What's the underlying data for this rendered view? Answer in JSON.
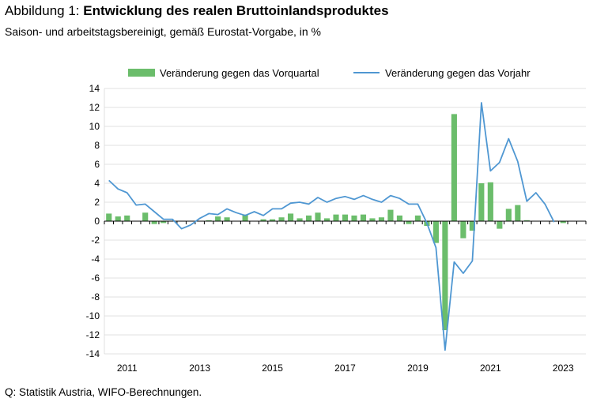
{
  "header": {
    "title_prefix": "Abbildung 1: ",
    "title_main": "Entwicklung des realen Bruttoinlandsproduktes",
    "subtitle": "Saison- und arbeitstagsbereinigt, gemäß Eurostat-Vorgabe, in %"
  },
  "footer": {
    "source": "Q: Statistik Austria, WIFO-Berechnungen."
  },
  "colors": {
    "bars": "#6bbd6b",
    "line": "#4f97d2",
    "axis": "#000000",
    "grid": "#d9d9d9"
  },
  "chart_data": {
    "type": "bar+line",
    "x": [
      "2010Q3",
      "2010Q4",
      "2011Q1",
      "2011Q2",
      "2011Q3",
      "2011Q4",
      "2012Q1",
      "2012Q2",
      "2012Q3",
      "2012Q4",
      "2013Q1",
      "2013Q2",
      "2013Q3",
      "2013Q4",
      "2014Q1",
      "2014Q2",
      "2014Q3",
      "2014Q4",
      "2015Q1",
      "2015Q2",
      "2015Q3",
      "2015Q4",
      "2016Q1",
      "2016Q2",
      "2016Q3",
      "2016Q4",
      "2017Q1",
      "2017Q2",
      "2017Q3",
      "2017Q4",
      "2018Q1",
      "2018Q2",
      "2018Q3",
      "2018Q4",
      "2019Q1",
      "2019Q2",
      "2019Q3",
      "2019Q4",
      "2020Q1",
      "2020Q2",
      "2020Q3",
      "2020Q4",
      "2021Q1",
      "2021Q2",
      "2021Q3",
      "2021Q4",
      "2022Q1",
      "2022Q2",
      "2022Q3",
      "2022Q4",
      "2023Q1",
      "2023Q2"
    ],
    "x_tick_labels": [
      {
        "label": "2011",
        "index": 2
      },
      {
        "label": "2013",
        "index": 10
      },
      {
        "label": "2015",
        "index": 18
      },
      {
        "label": "2017",
        "index": 26
      },
      {
        "label": "2019",
        "index": 34
      },
      {
        "label": "2021",
        "index": 42
      },
      {
        "label": "2023",
        "index": 50
      }
    ],
    "y_ticks": [
      "14",
      "12",
      "10",
      "8",
      "6",
      "4",
      "2",
      "0",
      "-2",
      "-4",
      "-6",
      "-8",
      "-10",
      "-12",
      "-14"
    ],
    "ylim": [
      -14,
      14
    ],
    "grid": true,
    "legend": "top",
    "series": [
      {
        "name": "Veränderung gegen das Vorquartal",
        "kind": "bar",
        "values": [
          0.8,
          0.5,
          0.6,
          null,
          0.9,
          -0.3,
          -0.2,
          null,
          null,
          null,
          null,
          0.1,
          0.5,
          0.4,
          null,
          0.7,
          null,
          0.2,
          0.2,
          0.4,
          0.8,
          0.3,
          0.6,
          0.9,
          0.3,
          0.7,
          0.7,
          0.6,
          0.7,
          0.3,
          0.4,
          1.2,
          0.6,
          -0.3,
          0.6,
          -0.5,
          -2.3,
          -11.5,
          11.3,
          -1.8,
          -1.0,
          4.0,
          4.1,
          -0.8,
          1.3,
          1.7,
          0.1,
          null,
          null,
          null,
          -0.2,
          null
        ]
      },
      {
        "name": "Veränderung gegen das Vorjahr",
        "kind": "line",
        "values": [
          4.3,
          3.4,
          3.0,
          1.7,
          1.8,
          1.0,
          0.2,
          0.2,
          -0.8,
          -0.4,
          0.3,
          0.8,
          0.7,
          1.3,
          0.9,
          0.6,
          1.0,
          0.6,
          1.3,
          1.3,
          1.9,
          2.0,
          1.8,
          2.5,
          2.0,
          2.4,
          2.6,
          2.3,
          2.7,
          2.3,
          2.0,
          2.7,
          2.4,
          1.8,
          1.8,
          -0.2,
          -2.8,
          -13.6,
          -4.3,
          -5.5,
          -4.2,
          12.5,
          5.3,
          6.2,
          8.7,
          6.3,
          2.1,
          3.0,
          1.8,
          -0.1,
          null,
          null
        ]
      }
    ]
  }
}
